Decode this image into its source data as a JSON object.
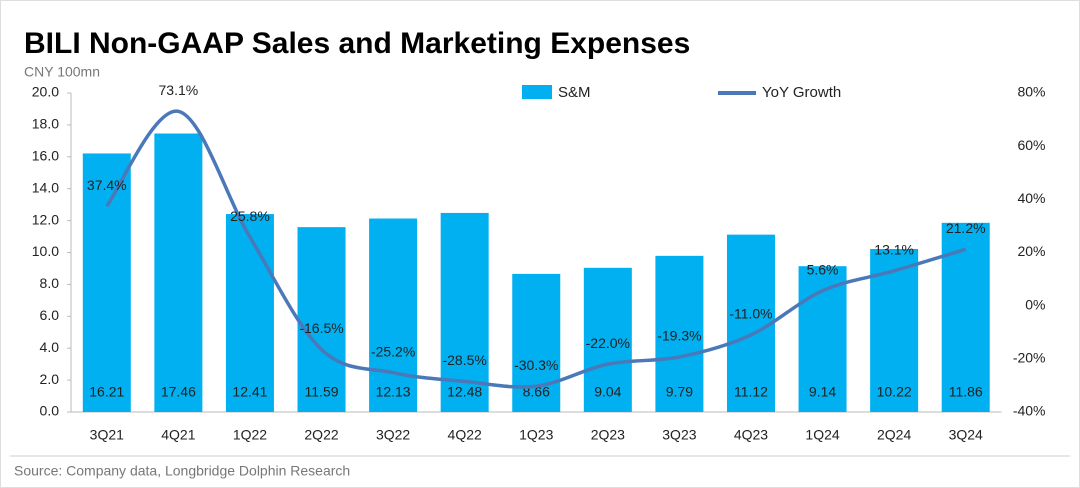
{
  "chart_data": {
    "type": "bar",
    "title": "BILI Non-GAAP Sales and Marketing Expenses",
    "y_axis_label": "CNY 100mn",
    "source": "Source: Company data, Longbridge Dolphin Research",
    "categories": [
      "3Q21",
      "4Q21",
      "1Q22",
      "2Q22",
      "3Q22",
      "4Q22",
      "1Q23",
      "2Q23",
      "3Q23",
      "4Q23",
      "1Q24",
      "2Q24",
      "3Q24"
    ],
    "series": [
      {
        "name": "S&M",
        "type": "bar",
        "color": "#00b0f0",
        "values": [
          16.21,
          17.46,
          12.41,
          11.59,
          12.13,
          12.48,
          8.66,
          9.04,
          9.79,
          11.12,
          9.14,
          10.22,
          11.86
        ]
      },
      {
        "name": "YoY Growth",
        "type": "line",
        "axis": "y2",
        "color": "#4a78b8",
        "values": [
          37.4,
          73.1,
          25.8,
          -16.5,
          -25.2,
          -28.5,
          -30.3,
          -22.0,
          -19.3,
          -11.0,
          5.6,
          13.1,
          21.2
        ],
        "value_labels": [
          "37.4%",
          "73.1%",
          "25.8%",
          "-16.5%",
          "-25.2%",
          "-28.5%",
          "-30.3%",
          "-22.0%",
          "-19.3%",
          "-11.0%",
          "5.6%",
          "13.1%",
          "21.2%"
        ]
      }
    ],
    "ylim": [
      0,
      20
    ],
    "yticks": [
      {
        "value": 0,
        "label": "0.0"
      },
      {
        "value": 2,
        "label": "2.0"
      },
      {
        "value": 4,
        "label": "4.0"
      },
      {
        "value": 6,
        "label": "6.0"
      },
      {
        "value": 8,
        "label": "8.0"
      },
      {
        "value": 10,
        "label": "10.0"
      },
      {
        "value": 12,
        "label": "12.0"
      },
      {
        "value": 14,
        "label": "14.0"
      },
      {
        "value": 16,
        "label": "16.0"
      },
      {
        "value": 18,
        "label": "18.0"
      },
      {
        "value": 20,
        "label": "20.0"
      }
    ],
    "y2lim": [
      -40,
      80
    ],
    "y2ticks": [
      {
        "value": -40,
        "label": "-40%"
      },
      {
        "value": -20,
        "label": "-20%"
      },
      {
        "value": 0,
        "label": "0%"
      },
      {
        "value": 20,
        "label": "20%"
      },
      {
        "value": 40,
        "label": "40%"
      },
      {
        "value": 60,
        "label": "60%"
      },
      {
        "value": 80,
        "label": "80%"
      }
    ]
  }
}
